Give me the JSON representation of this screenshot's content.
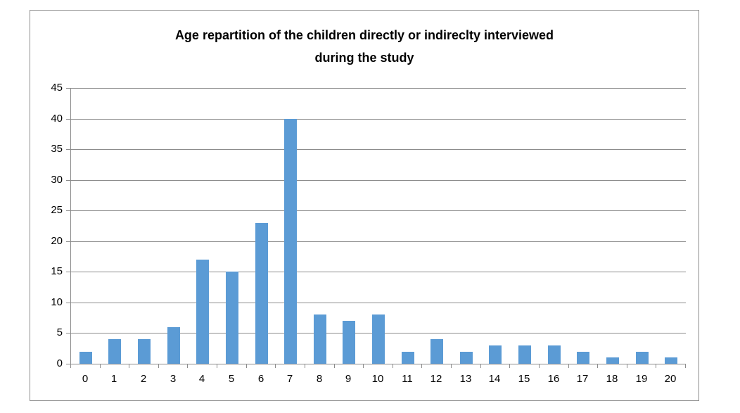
{
  "window": {
    "background": "#ffffff"
  },
  "title": {
    "line1": "Age repartition of the children directly or indireclty interviewed",
    "line2": "during the study"
  },
  "chart_data": {
    "type": "bar",
    "title": "Age repartition of the children directly or indireclty interviewed during the study",
    "categories": [
      0,
      1,
      2,
      3,
      4,
      5,
      6,
      7,
      8,
      9,
      10,
      11,
      12,
      13,
      14,
      15,
      16,
      17,
      18,
      19,
      20
    ],
    "values": [
      2,
      4,
      4,
      6,
      17,
      15,
      23,
      40,
      8,
      7,
      8,
      2,
      4,
      2,
      3,
      3,
      3,
      2,
      1,
      2,
      1
    ],
    "xlabel": "",
    "ylabel": "",
    "ylim": [
      0,
      45
    ],
    "ytick_step": 5,
    "yticks": [
      0,
      5,
      10,
      15,
      20,
      25,
      30,
      35,
      40,
      45
    ],
    "grid": true,
    "legend": false,
    "colors": {
      "bar": "#5b9bd5",
      "gridline": "#8c8c8c",
      "axis": "#8c8c8c",
      "frame_border": "#8c8c8c",
      "text": "#000000"
    }
  }
}
